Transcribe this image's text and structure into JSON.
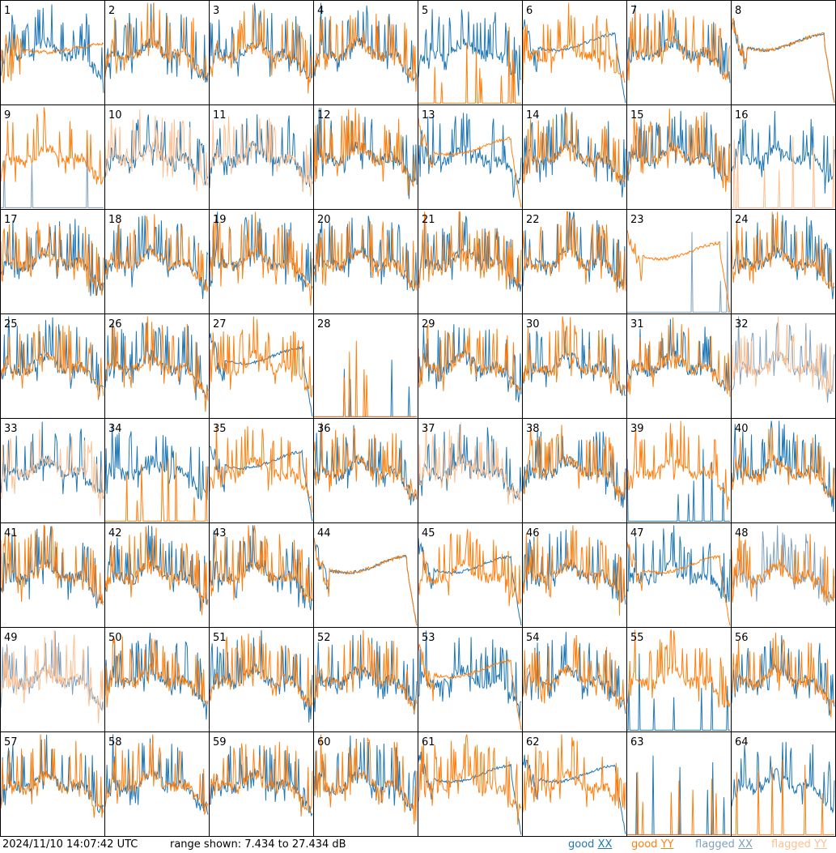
{
  "chart_data": {
    "type": "line",
    "title": "",
    "grid": {
      "rows": 8,
      "cols": 8
    },
    "panels": [
      {
        "label": "1",
        "xx": "good",
        "yy": "good",
        "xx_shape": "normal",
        "yy_shape": "flat-dip"
      },
      {
        "label": "2",
        "xx": "good",
        "yy": "good",
        "xx_shape": "normal",
        "yy_shape": "normal"
      },
      {
        "label": "3",
        "xx": "good",
        "yy": "good",
        "xx_shape": "normal",
        "yy_shape": "normal"
      },
      {
        "label": "4",
        "xx": "good",
        "yy": "good",
        "xx_shape": "normal",
        "yy_shape": "normal"
      },
      {
        "label": "5",
        "xx": "good",
        "yy": "good",
        "xx_shape": "normal",
        "yy_shape": "spikes"
      },
      {
        "label": "6",
        "xx": "good",
        "yy": "good",
        "xx_shape": "flat",
        "yy_shape": "normal"
      },
      {
        "label": "7",
        "xx": "good",
        "yy": "good",
        "xx_shape": "normal",
        "yy_shape": "normal"
      },
      {
        "label": "8",
        "xx": "good",
        "yy": "good",
        "xx_shape": "flat",
        "yy_shape": "flat"
      },
      {
        "label": "9",
        "xx": "flagged",
        "yy": "good",
        "xx_shape": "spikes",
        "yy_shape": "normal"
      },
      {
        "label": "10",
        "xx": "good",
        "yy": "flagged",
        "xx_shape": "normal",
        "yy_shape": "normal"
      },
      {
        "label": "11",
        "xx": "good",
        "yy": "flagged",
        "xx_shape": "normal",
        "yy_shape": "normal"
      },
      {
        "label": "12",
        "xx": "good",
        "yy": "good",
        "xx_shape": "normal",
        "yy_shape": "normal"
      },
      {
        "label": "13",
        "xx": "good",
        "yy": "good",
        "xx_shape": "normal",
        "yy_shape": "flat"
      },
      {
        "label": "14",
        "xx": "good",
        "yy": "good",
        "xx_shape": "normal",
        "yy_shape": "normal"
      },
      {
        "label": "15",
        "xx": "good",
        "yy": "good",
        "xx_shape": "normal",
        "yy_shape": "normal"
      },
      {
        "label": "16",
        "xx": "good",
        "yy": "flagged",
        "xx_shape": "normal",
        "yy_shape": "spikes"
      },
      {
        "label": "17",
        "xx": "good",
        "yy": "good",
        "xx_shape": "normal",
        "yy_shape": "normal"
      },
      {
        "label": "18",
        "xx": "good",
        "yy": "good",
        "xx_shape": "normal",
        "yy_shape": "normal"
      },
      {
        "label": "19",
        "xx": "good",
        "yy": "good",
        "xx_shape": "normal",
        "yy_shape": "normal"
      },
      {
        "label": "20",
        "xx": "good",
        "yy": "good",
        "xx_shape": "normal",
        "yy_shape": "normal"
      },
      {
        "label": "21",
        "xx": "good",
        "yy": "good",
        "xx_shape": "normal",
        "yy_shape": "normal"
      },
      {
        "label": "22",
        "xx": "good",
        "yy": "good",
        "xx_shape": "normal",
        "yy_shape": "normal"
      },
      {
        "label": "23",
        "xx": "flagged",
        "yy": "good",
        "xx_shape": "spikes",
        "yy_shape": "flat"
      },
      {
        "label": "24",
        "xx": "good",
        "yy": "good",
        "xx_shape": "normal",
        "yy_shape": "normal"
      },
      {
        "label": "25",
        "xx": "good",
        "yy": "good",
        "xx_shape": "normal",
        "yy_shape": "normal"
      },
      {
        "label": "26",
        "xx": "good",
        "yy": "good",
        "xx_shape": "normal",
        "yy_shape": "normal"
      },
      {
        "label": "27",
        "xx": "good",
        "yy": "good",
        "xx_shape": "flat",
        "yy_shape": "normal"
      },
      {
        "label": "28",
        "xx": "good",
        "yy": "good",
        "xx_shape": "spikes",
        "yy_shape": "spikes"
      },
      {
        "label": "29",
        "xx": "good",
        "yy": "good",
        "xx_shape": "normal",
        "yy_shape": "normal"
      },
      {
        "label": "30",
        "xx": "good",
        "yy": "good",
        "xx_shape": "normal",
        "yy_shape": "normal"
      },
      {
        "label": "31",
        "xx": "good",
        "yy": "good",
        "xx_shape": "normal",
        "yy_shape": "normal"
      },
      {
        "label": "32",
        "xx": "flagged",
        "yy": "flagged",
        "xx_shape": "normal",
        "yy_shape": "normal"
      },
      {
        "label": "33",
        "xx": "good",
        "yy": "flagged",
        "xx_shape": "normal",
        "yy_shape": "normal"
      },
      {
        "label": "34",
        "xx": "good",
        "yy": "good",
        "xx_shape": "normal",
        "yy_shape": "spikes"
      },
      {
        "label": "35",
        "xx": "good",
        "yy": "good",
        "xx_shape": "flat",
        "yy_shape": "normal"
      },
      {
        "label": "36",
        "xx": "good",
        "yy": "good",
        "xx_shape": "normal",
        "yy_shape": "normal"
      },
      {
        "label": "37",
        "xx": "good",
        "yy": "flagged",
        "xx_shape": "normal",
        "yy_shape": "normal"
      },
      {
        "label": "38",
        "xx": "good",
        "yy": "good",
        "xx_shape": "normal",
        "yy_shape": "normal"
      },
      {
        "label": "39",
        "xx": "good",
        "yy": "good",
        "xx_shape": "spikes",
        "yy_shape": "normal"
      },
      {
        "label": "40",
        "xx": "good",
        "yy": "good",
        "xx_shape": "normal",
        "yy_shape": "normal"
      },
      {
        "label": "41",
        "xx": "good",
        "yy": "good",
        "xx_shape": "normal",
        "yy_shape": "normal"
      },
      {
        "label": "42",
        "xx": "good",
        "yy": "good",
        "xx_shape": "normal",
        "yy_shape": "normal"
      },
      {
        "label": "43",
        "xx": "good",
        "yy": "good",
        "xx_shape": "normal",
        "yy_shape": "normal"
      },
      {
        "label": "44",
        "xx": "good",
        "yy": "good",
        "xx_shape": "flat",
        "yy_shape": "flat"
      },
      {
        "label": "45",
        "xx": "good",
        "yy": "good",
        "xx_shape": "flat",
        "yy_shape": "normal"
      },
      {
        "label": "46",
        "xx": "good",
        "yy": "good",
        "xx_shape": "normal",
        "yy_shape": "normal"
      },
      {
        "label": "47",
        "xx": "good",
        "yy": "good",
        "xx_shape": "normal",
        "yy_shape": "flat"
      },
      {
        "label": "48",
        "xx": "flagged",
        "yy": "good",
        "xx_shape": "normal",
        "yy_shape": "normal"
      },
      {
        "label": "49",
        "xx": "flagged",
        "yy": "flagged",
        "xx_shape": "normal",
        "yy_shape": "normal"
      },
      {
        "label": "50",
        "xx": "good",
        "yy": "good",
        "xx_shape": "normal",
        "yy_shape": "normal"
      },
      {
        "label": "51",
        "xx": "good",
        "yy": "good",
        "xx_shape": "normal",
        "yy_shape": "normal"
      },
      {
        "label": "52",
        "xx": "good",
        "yy": "good",
        "xx_shape": "normal",
        "yy_shape": "normal"
      },
      {
        "label": "53",
        "xx": "good",
        "yy": "good",
        "xx_shape": "normal",
        "yy_shape": "flat"
      },
      {
        "label": "54",
        "xx": "good",
        "yy": "good",
        "xx_shape": "normal",
        "yy_shape": "normal"
      },
      {
        "label": "55",
        "xx": "good",
        "yy": "good",
        "xx_shape": "spikes",
        "yy_shape": "normal"
      },
      {
        "label": "56",
        "xx": "good",
        "yy": "good",
        "xx_shape": "normal",
        "yy_shape": "normal"
      },
      {
        "label": "57",
        "xx": "good",
        "yy": "good",
        "xx_shape": "normal",
        "yy_shape": "normal"
      },
      {
        "label": "58",
        "xx": "good",
        "yy": "good",
        "xx_shape": "normal",
        "yy_shape": "normal"
      },
      {
        "label": "59",
        "xx": "good",
        "yy": "good",
        "xx_shape": "normal",
        "yy_shape": "normal"
      },
      {
        "label": "60",
        "xx": "good",
        "yy": "good",
        "xx_shape": "normal",
        "yy_shape": "normal"
      },
      {
        "label": "61",
        "xx": "good",
        "yy": "good",
        "xx_shape": "flat",
        "yy_shape": "normal"
      },
      {
        "label": "62",
        "xx": "good",
        "yy": "good",
        "xx_shape": "flat",
        "yy_shape": "normal"
      },
      {
        "label": "63",
        "xx": "good",
        "yy": "good",
        "xx_shape": "spikes",
        "yy_shape": "spikes"
      },
      {
        "label": "64",
        "xx": "good",
        "yy": "good",
        "xx_shape": "normal",
        "yy_shape": "spikes"
      }
    ],
    "colors": {
      "good_xx": "#1f77b4",
      "good_yy": "#ff7f0e",
      "flagged_xx": "#7ea0be",
      "flagged_yy": "#ffbf8f"
    }
  },
  "footer": {
    "timestamp": "2024/11/10 14:07:42 UTC",
    "range_text": "range shown: 7.434 to 27.434 dB",
    "legend": {
      "good_word": "good",
      "flagged_word": "flagged",
      "xx": "XX",
      "yy": "YY"
    }
  }
}
